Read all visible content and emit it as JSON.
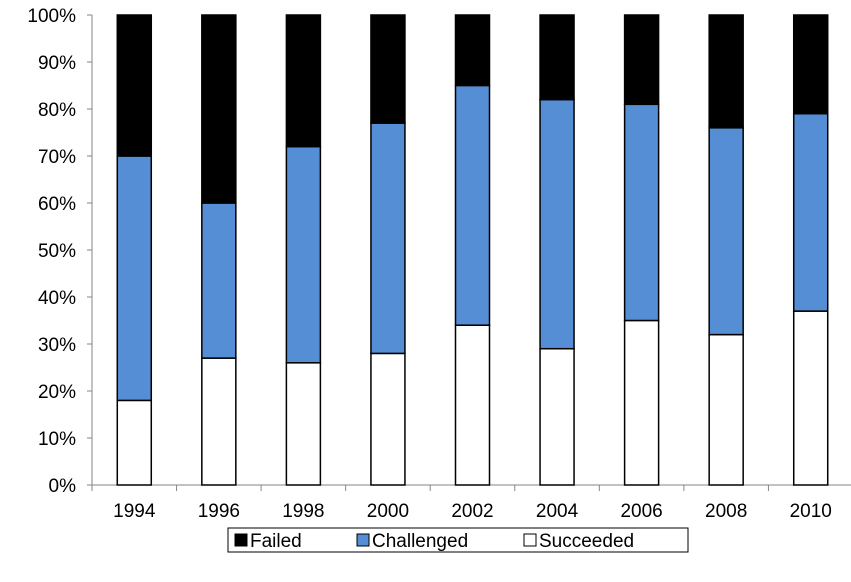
{
  "chart_data": {
    "type": "bar",
    "stacked": true,
    "percent": true,
    "categories": [
      "1994",
      "1996",
      "1998",
      "2000",
      "2002",
      "2004",
      "2006",
      "2008",
      "2010"
    ],
    "series": [
      {
        "name": "Succeeded",
        "values": [
          18,
          27,
          26,
          28,
          34,
          29,
          35,
          32,
          37
        ],
        "color": "#ffffff"
      },
      {
        "name": "Challenged",
        "values": [
          52,
          33,
          46,
          49,
          51,
          53,
          46,
          44,
          42
        ],
        "color": "#558ed5"
      },
      {
        "name": "Failed",
        "values": [
          30,
          40,
          28,
          23,
          15,
          18,
          19,
          24,
          21
        ],
        "color": "#000000"
      }
    ],
    "legend_order": [
      "Failed",
      "Challenged",
      "Succeeded"
    ],
    "ylim": [
      0,
      100
    ],
    "yticks": [
      "0%",
      "10%",
      "20%",
      "30%",
      "40%",
      "50%",
      "60%",
      "70%",
      "80%",
      "90%",
      "100%"
    ],
    "grid": false,
    "legend_position": "bottom"
  }
}
